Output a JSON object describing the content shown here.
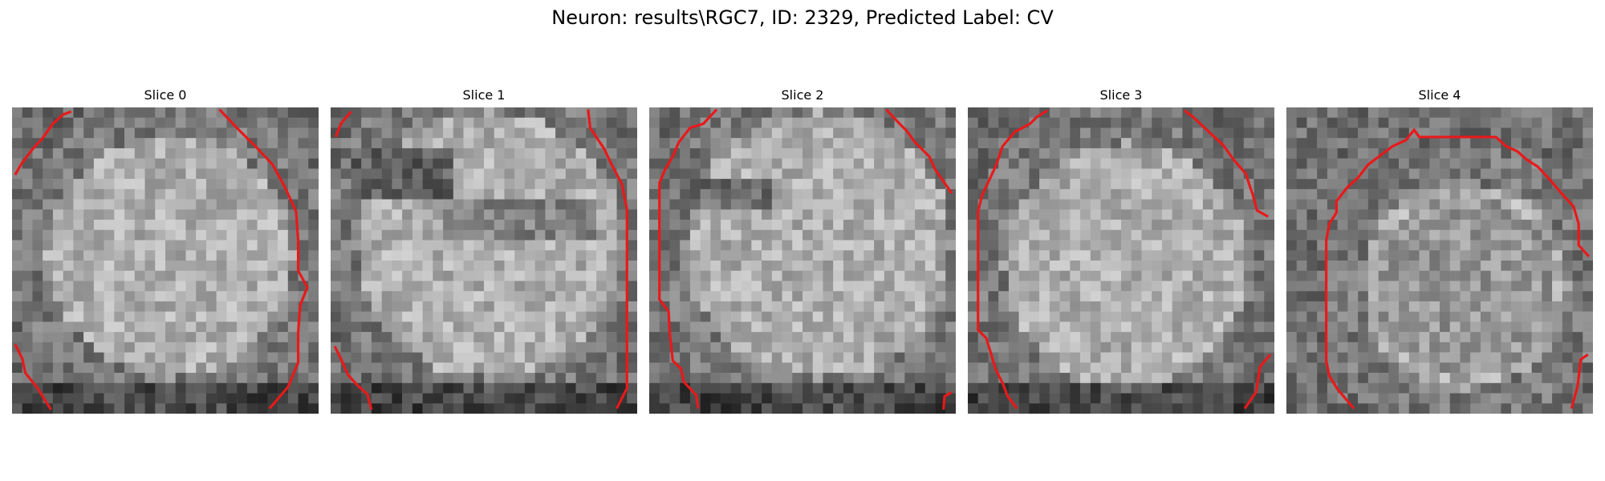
{
  "figure": {
    "title": "Neuron: results\\RGC7, ID: 2329, Predicted Label: CV"
  },
  "colors": {
    "contour": "#e8191a",
    "background": "#ffffff"
  },
  "slices": [
    {
      "label": "Slice 0"
    },
    {
      "label": "Slice 1"
    },
    {
      "label": "Slice 2"
    },
    {
      "label": "Slice 3"
    },
    {
      "label": "Slice 4"
    }
  ]
}
